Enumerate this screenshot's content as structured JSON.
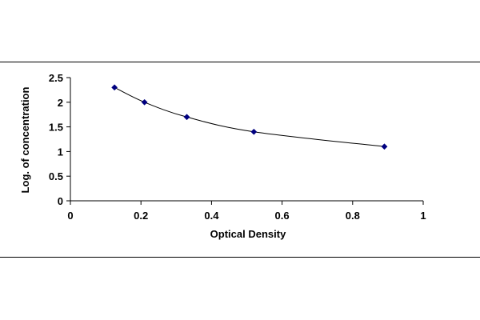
{
  "chart_data": {
    "type": "scatter",
    "title": "",
    "xlabel": "Optical Density",
    "ylabel": "Log. of concentration",
    "xlim": [
      0,
      1
    ],
    "ylim": [
      0,
      2.5
    ],
    "x_ticks": [
      0,
      0.2,
      0.4,
      0.6,
      0.8,
      1
    ],
    "x_tick_labels": [
      "0",
      "0.2",
      "0.4",
      "0.6",
      "0.8",
      "1"
    ],
    "y_ticks": [
      0,
      0.5,
      1,
      1.5,
      2,
      2.5
    ],
    "y_tick_labels": [
      "0",
      "0.5",
      "1",
      "1.5",
      "2",
      "2.5"
    ],
    "grid": false,
    "legend": "none",
    "marker": "diamond",
    "fit_line": "smooth curve through points",
    "series": [
      {
        "x": [
          0.125,
          0.21,
          0.33,
          0.52,
          0.89
        ],
        "y": [
          2.3,
          2.0,
          1.7,
          1.4,
          1.1
        ],
        "color": "#000080",
        "line_color": "#000000"
      }
    ]
  }
}
